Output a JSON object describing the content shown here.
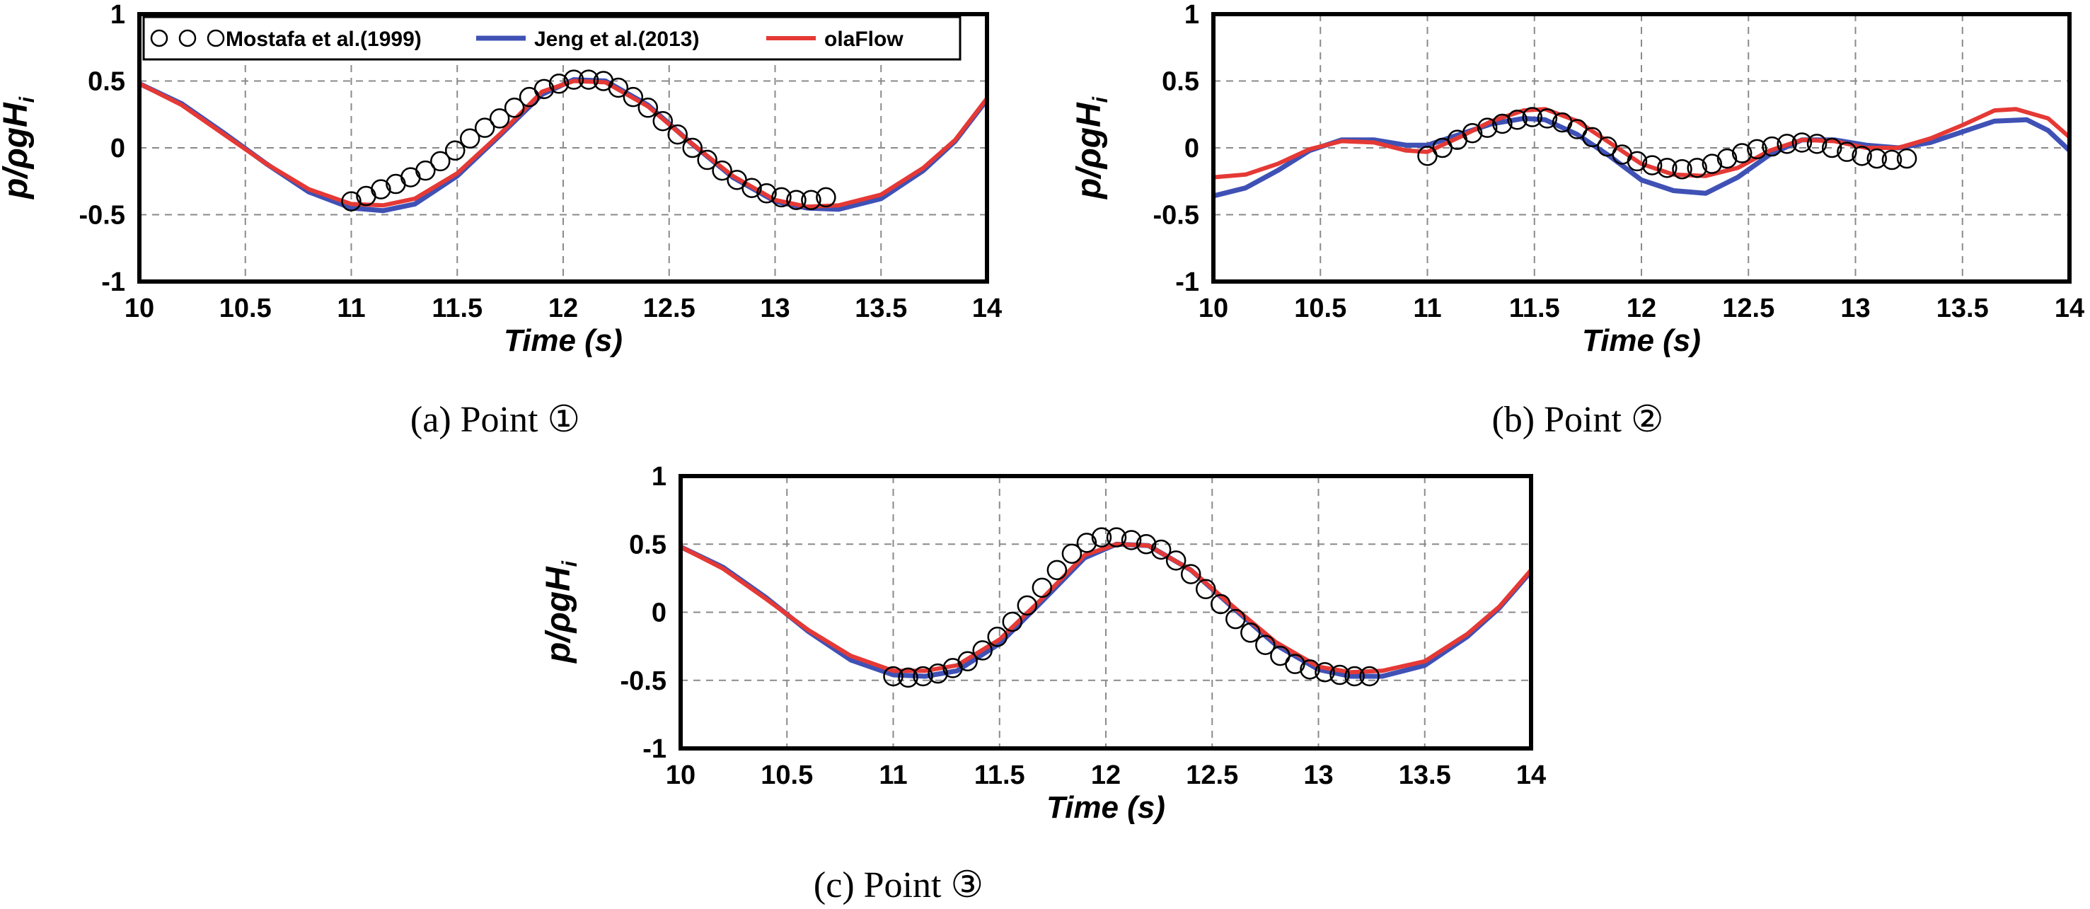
{
  "colors": {
    "experiment": "#000000",
    "jeng": "#3f51b5",
    "olaflow": "#e53935",
    "grid": "#8a8a8a"
  },
  "legend": {
    "experiment": "Mostafa et al.(1999)",
    "jeng": "Jeng et al.(2013)",
    "olaflow": "olaFlow"
  },
  "chart_data": [
    {
      "type": "line",
      "panel": "a",
      "caption": "(a) Point ①",
      "xlabel": "Time (s)",
      "ylabel_main": "p/ρgH",
      "ylabel_sub": "i",
      "xlim": [
        10,
        14
      ],
      "ylim": [
        -1,
        1
      ],
      "xticks": [
        "10",
        "10.5",
        "11",
        "11.5",
        "12",
        "12.5",
        "13",
        "13.5",
        "14"
      ],
      "yticks": [
        "1",
        "0.5",
        "0",
        "-0.5",
        "-1"
      ],
      "grid": true,
      "series": [
        {
          "name": "Jeng et al.(2013)",
          "x": [
            10.0,
            10.2,
            10.4,
            10.6,
            10.8,
            11.0,
            11.15,
            11.3,
            11.5,
            11.7,
            11.9,
            12.05,
            12.2,
            12.4,
            12.6,
            12.8,
            13.0,
            13.15,
            13.3,
            13.5,
            13.7,
            13.85,
            14.0
          ],
          "y": [
            0.48,
            0.33,
            0.11,
            -0.12,
            -0.33,
            -0.45,
            -0.47,
            -0.42,
            -0.21,
            0.09,
            0.4,
            0.51,
            0.5,
            0.32,
            0.04,
            -0.22,
            -0.4,
            -0.45,
            -0.46,
            -0.38,
            -0.17,
            0.05,
            0.36
          ]
        },
        {
          "name": "olaFlow",
          "x": [
            10.0,
            10.2,
            10.4,
            10.6,
            10.8,
            11.0,
            11.15,
            11.3,
            11.5,
            11.7,
            11.9,
            12.05,
            12.2,
            12.4,
            12.6,
            12.8,
            13.0,
            13.15,
            13.3,
            13.5,
            13.7,
            13.85,
            14.0
          ],
          "y": [
            0.48,
            0.32,
            0.1,
            -0.12,
            -0.31,
            -0.42,
            -0.43,
            -0.38,
            -0.19,
            0.1,
            0.42,
            0.5,
            0.49,
            0.31,
            0.04,
            -0.21,
            -0.39,
            -0.44,
            -0.43,
            -0.35,
            -0.15,
            0.06,
            0.37
          ]
        },
        {
          "name": "Mostafa et al.(1999)",
          "x": [
            11.0,
            11.07,
            11.14,
            11.21,
            11.28,
            11.35,
            11.42,
            11.49,
            11.56,
            11.63,
            11.7,
            11.77,
            11.84,
            11.91,
            11.98,
            12.05,
            12.12,
            12.19,
            12.26,
            12.33,
            12.4,
            12.47,
            12.54,
            12.61,
            12.68,
            12.75,
            12.82,
            12.89,
            12.96,
            13.03,
            13.1,
            13.17,
            13.24
          ],
          "y": [
            -0.4,
            -0.36,
            -0.31,
            -0.27,
            -0.22,
            -0.17,
            -0.1,
            -0.02,
            0.07,
            0.15,
            0.22,
            0.3,
            0.38,
            0.44,
            0.48,
            0.51,
            0.51,
            0.5,
            0.45,
            0.38,
            0.3,
            0.2,
            0.1,
            0.0,
            -0.09,
            -0.17,
            -0.24,
            -0.3,
            -0.34,
            -0.37,
            -0.39,
            -0.39,
            -0.37
          ]
        }
      ]
    },
    {
      "type": "line",
      "panel": "b",
      "caption": "(b) Point ②",
      "xlabel": "Time (s)",
      "ylabel_main": "p/ρgH",
      "ylabel_sub": "i",
      "xlim": [
        10,
        14
      ],
      "ylim": [
        -1,
        1
      ],
      "xticks": [
        "10",
        "10.5",
        "11",
        "11.5",
        "12",
        "12.5",
        "13",
        "13.5",
        "14"
      ],
      "yticks": [
        "1",
        "0.5",
        "0",
        "-0.5",
        "-1"
      ],
      "grid": true,
      "series": [
        {
          "name": "Jeng et al.(2013)",
          "x": [
            10.0,
            10.15,
            10.3,
            10.45,
            10.6,
            10.75,
            10.9,
            11.0,
            11.15,
            11.3,
            11.45,
            11.55,
            11.7,
            11.85,
            12.0,
            12.15,
            12.3,
            12.45,
            12.6,
            12.75,
            12.9,
            13.05,
            13.2,
            13.35,
            13.5,
            13.65,
            13.8,
            13.9,
            14.0
          ],
          "y": [
            -0.36,
            -0.3,
            -0.17,
            -0.02,
            0.06,
            0.06,
            0.02,
            0.02,
            0.1,
            0.18,
            0.22,
            0.21,
            0.1,
            -0.06,
            -0.24,
            -0.32,
            -0.34,
            -0.22,
            -0.05,
            0.06,
            0.06,
            0.02,
            0.0,
            0.04,
            0.12,
            0.2,
            0.21,
            0.13,
            -0.02
          ]
        },
        {
          "name": "olaFlow",
          "x": [
            10.0,
            10.15,
            10.3,
            10.45,
            10.6,
            10.75,
            10.9,
            11.0,
            11.15,
            11.3,
            11.45,
            11.55,
            11.7,
            11.85,
            12.0,
            12.15,
            12.3,
            12.45,
            12.6,
            12.75,
            12.9,
            13.05,
            13.2,
            13.35,
            13.5,
            13.65,
            13.75,
            13.9,
            14.0
          ],
          "y": [
            -0.22,
            -0.2,
            -0.12,
            -0.01,
            0.05,
            0.04,
            -0.02,
            -0.03,
            0.08,
            0.2,
            0.28,
            0.29,
            0.2,
            0.04,
            -0.12,
            -0.2,
            -0.21,
            -0.15,
            -0.02,
            0.06,
            0.05,
            0.0,
            0.0,
            0.07,
            0.17,
            0.28,
            0.29,
            0.22,
            0.08
          ]
        },
        {
          "name": "Mostafa et al.(1999)",
          "x": [
            11.0,
            11.07,
            11.14,
            11.21,
            11.28,
            11.35,
            11.42,
            11.49,
            11.56,
            11.63,
            11.7,
            11.77,
            11.84,
            11.91,
            11.98,
            12.05,
            12.12,
            12.19,
            12.26,
            12.33,
            12.4,
            12.47,
            12.54,
            12.61,
            12.68,
            12.75,
            12.82,
            12.89,
            12.96,
            13.03,
            13.1,
            13.17,
            13.24
          ],
          "y": [
            -0.06,
            0.0,
            0.06,
            0.11,
            0.15,
            0.18,
            0.21,
            0.23,
            0.22,
            0.19,
            0.14,
            0.08,
            0.01,
            -0.05,
            -0.1,
            -0.13,
            -0.15,
            -0.16,
            -0.15,
            -0.12,
            -0.08,
            -0.04,
            -0.01,
            0.01,
            0.03,
            0.04,
            0.03,
            0.0,
            -0.03,
            -0.06,
            -0.08,
            -0.09,
            -0.08
          ]
        }
      ]
    },
    {
      "type": "line",
      "panel": "c",
      "caption": "(c) Point ③",
      "xlabel": "Time (s)",
      "ylabel_main": "p/ρgH",
      "ylabel_sub": "i",
      "xlim": [
        10,
        14
      ],
      "ylim": [
        -1,
        1
      ],
      "xticks": [
        "10",
        "10.5",
        "11",
        "11.5",
        "12",
        "12.5",
        "13",
        "13.5",
        "14"
      ],
      "yticks": [
        "1",
        "0.5",
        "0",
        "-0.5",
        "-1"
      ],
      "grid": true,
      "series": [
        {
          "name": "Jeng et al.(2013)",
          "x": [
            10.0,
            10.2,
            10.4,
            10.6,
            10.8,
            11.0,
            11.15,
            11.3,
            11.5,
            11.7,
            11.9,
            12.05,
            12.2,
            12.4,
            12.6,
            12.8,
            13.0,
            13.15,
            13.3,
            13.5,
            13.7,
            13.85,
            14.0
          ],
          "y": [
            0.48,
            0.33,
            0.11,
            -0.14,
            -0.35,
            -0.46,
            -0.47,
            -0.43,
            -0.23,
            0.08,
            0.4,
            0.5,
            0.49,
            0.31,
            0.03,
            -0.24,
            -0.42,
            -0.47,
            -0.47,
            -0.39,
            -0.18,
            0.03,
            0.3
          ]
        },
        {
          "name": "olaFlow",
          "x": [
            10.0,
            10.2,
            10.4,
            10.6,
            10.8,
            11.0,
            11.15,
            11.3,
            11.5,
            11.7,
            11.9,
            12.05,
            12.2,
            12.4,
            12.6,
            12.8,
            13.0,
            13.15,
            13.3,
            13.5,
            13.7,
            13.85,
            14.0
          ],
          "y": [
            0.48,
            0.32,
            0.1,
            -0.13,
            -0.32,
            -0.43,
            -0.43,
            -0.39,
            -0.2,
            0.1,
            0.42,
            0.5,
            0.49,
            0.31,
            0.04,
            -0.22,
            -0.4,
            -0.44,
            -0.43,
            -0.36,
            -0.16,
            0.04,
            0.31
          ]
        },
        {
          "name": "Mostafa et al.(1999)",
          "x": [
            11.0,
            11.07,
            11.14,
            11.21,
            11.28,
            11.35,
            11.42,
            11.49,
            11.56,
            11.63,
            11.7,
            11.77,
            11.84,
            11.91,
            11.98,
            12.05,
            12.12,
            12.19,
            12.26,
            12.33,
            12.4,
            12.47,
            12.54,
            12.61,
            12.68,
            12.75,
            12.82,
            12.89,
            12.96,
            13.03,
            13.1,
            13.17,
            13.24
          ],
          "y": [
            -0.47,
            -0.48,
            -0.47,
            -0.45,
            -0.41,
            -0.36,
            -0.28,
            -0.18,
            -0.07,
            0.05,
            0.18,
            0.31,
            0.43,
            0.51,
            0.55,
            0.55,
            0.53,
            0.5,
            0.46,
            0.38,
            0.28,
            0.17,
            0.06,
            -0.05,
            -0.15,
            -0.24,
            -0.32,
            -0.38,
            -0.42,
            -0.44,
            -0.46,
            -0.47,
            -0.47
          ]
        }
      ]
    }
  ]
}
